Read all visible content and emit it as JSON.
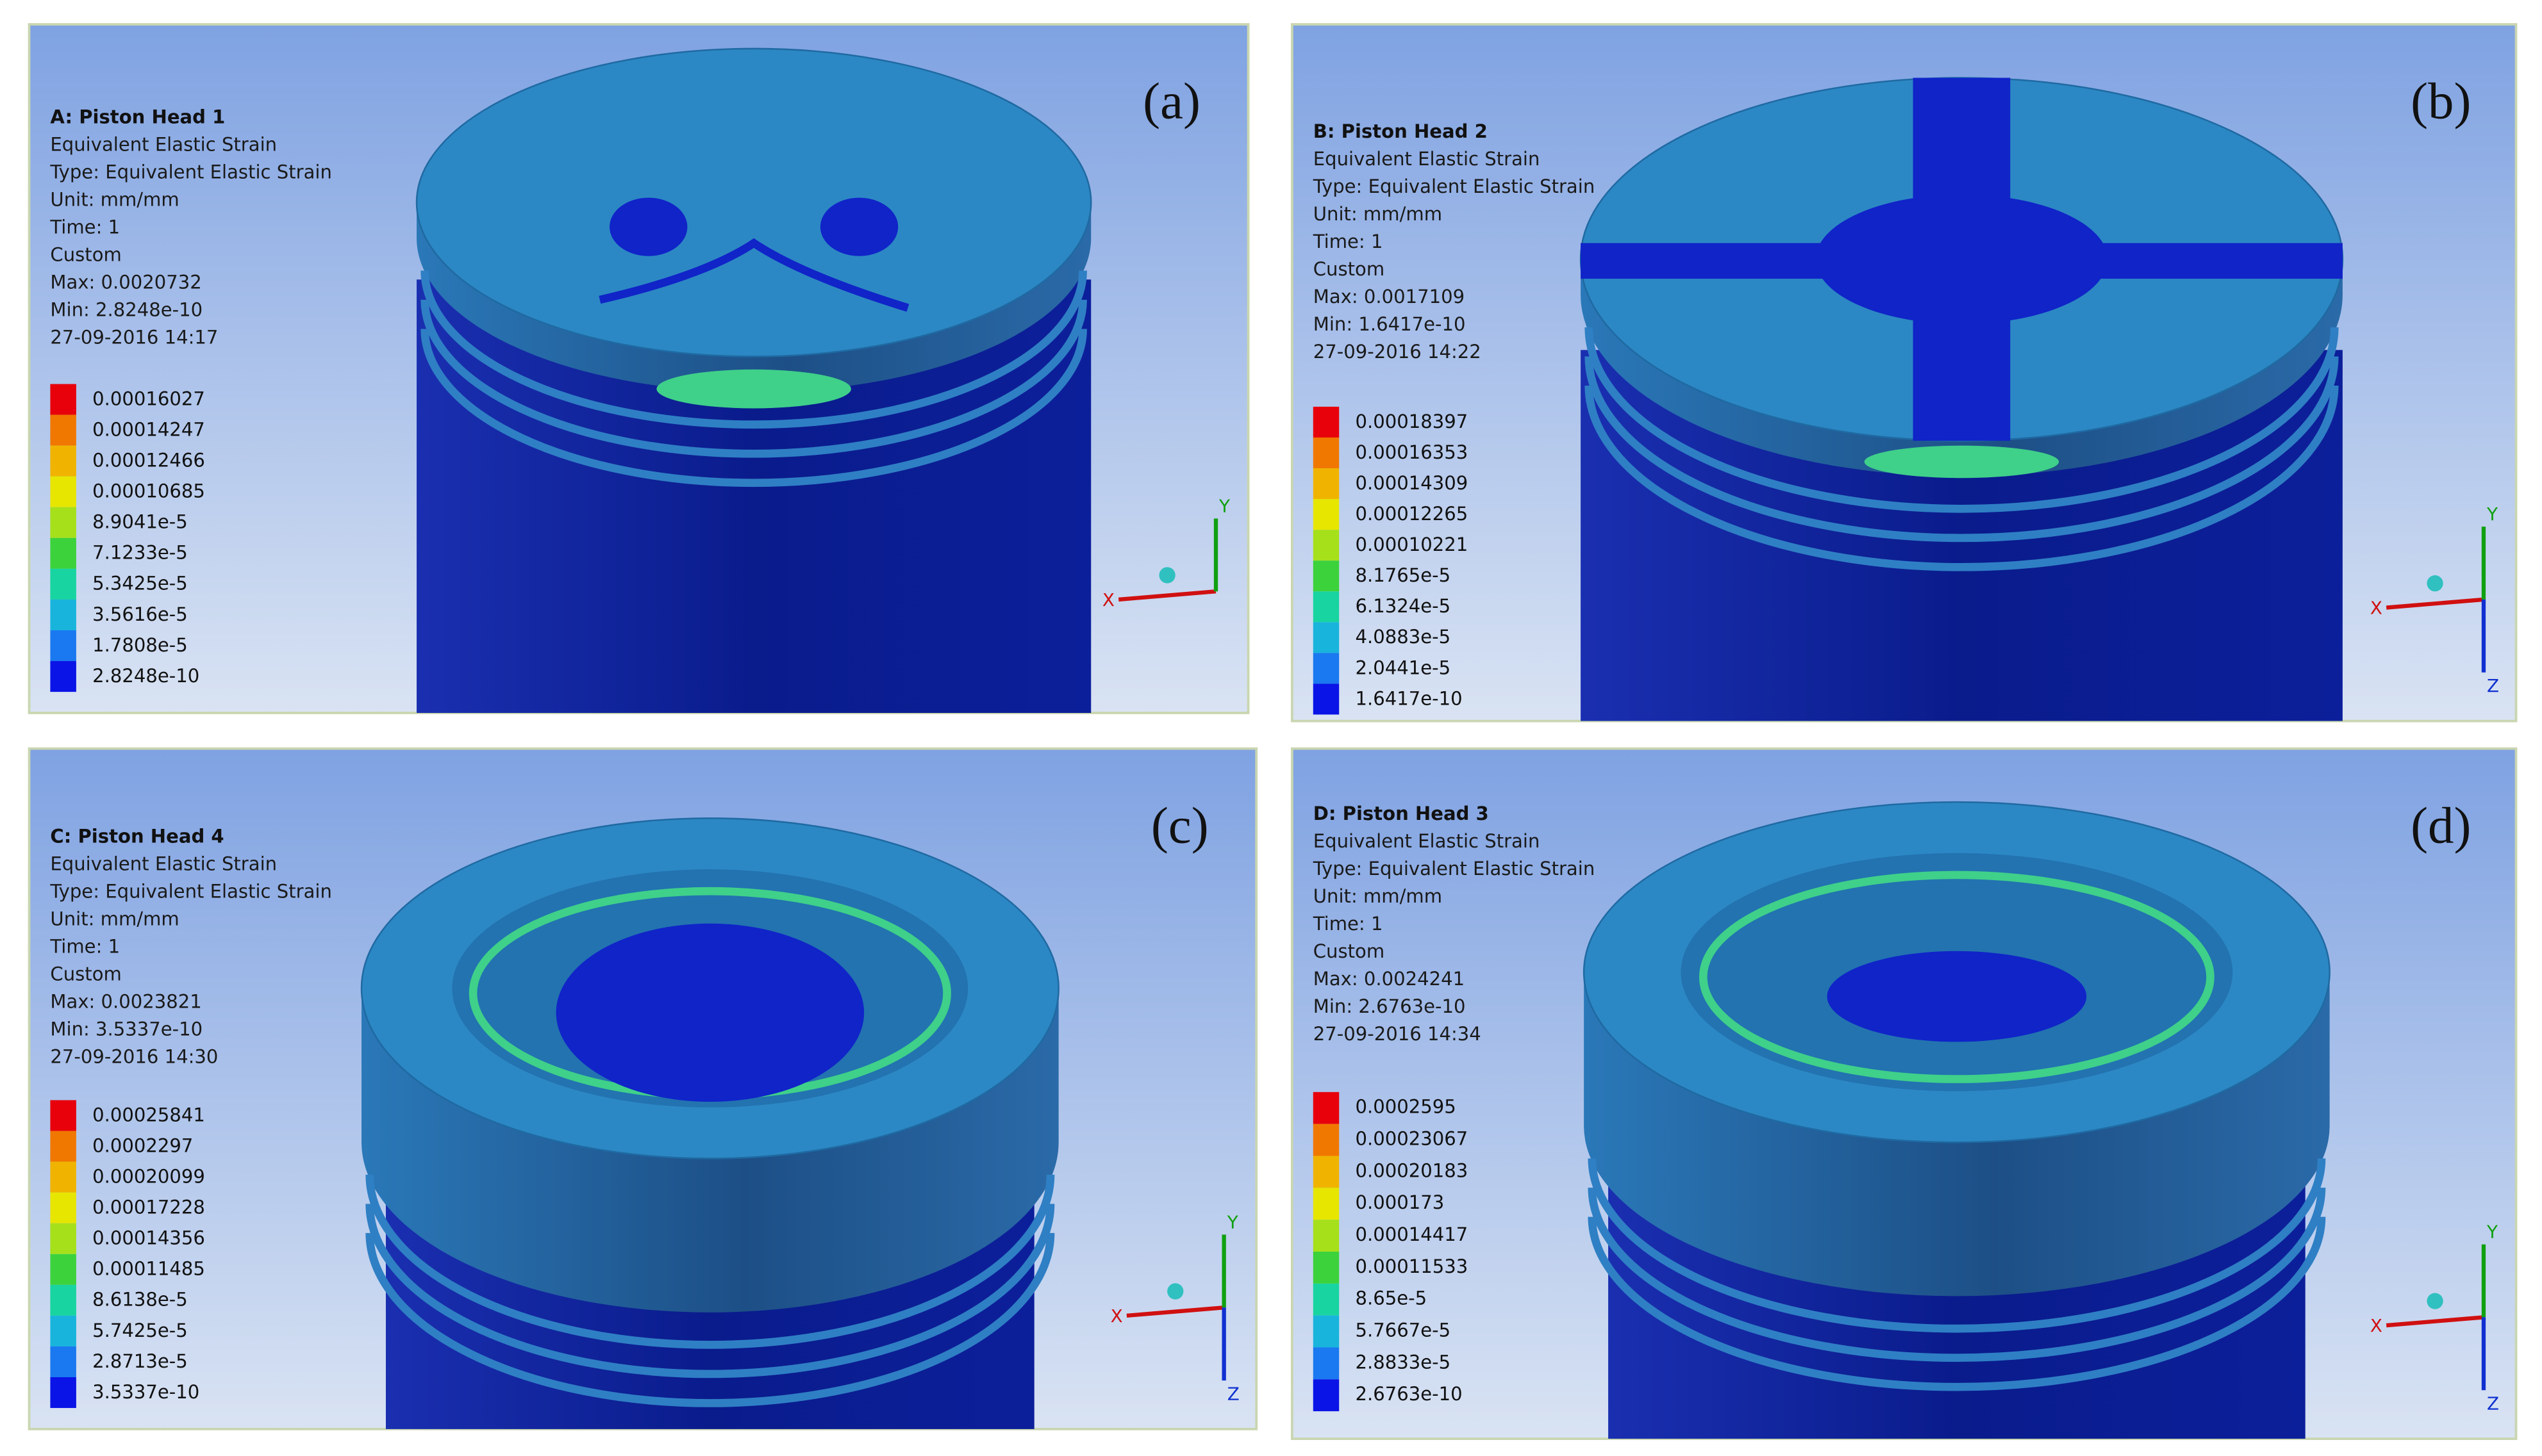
{
  "panels": [
    {
      "label": "(a)",
      "title": "A: Piston Head 1",
      "lines": [
        "Equivalent Elastic Strain",
        "Type: Equivalent Elastic Strain",
        "Unit: mm/mm",
        "Time: 1",
        "Custom",
        "Max: 0.0020732",
        "Min: 2.8248e-10",
        "27-09-2016 14:17"
      ],
      "legend": [
        "0.00016027",
        "0.00014247",
        "0.00012466",
        "0.00010685",
        "8.9041e-5",
        "7.1233e-5",
        "5.3425e-5",
        "3.5616e-5",
        "1.7808e-5",
        "2.8248e-10"
      ],
      "axes": [
        "X",
        "Y"
      ]
    },
    {
      "label": "(b)",
      "title": "B: Piston Head 2",
      "lines": [
        "Equivalent Elastic Strain",
        "Type: Equivalent Elastic Strain",
        "Unit: mm/mm",
        "Time: 1",
        "Custom",
        "Max: 0.0017109",
        "Min: 1.6417e-10",
        "27-09-2016 14:22"
      ],
      "legend": [
        "0.00018397",
        "0.00016353",
        "0.00014309",
        "0.00012265",
        "0.00010221",
        "8.1765e-5",
        "6.1324e-5",
        "4.0883e-5",
        "2.0441e-5",
        "1.6417e-10"
      ],
      "axes": [
        "X",
        "Y",
        "Z"
      ]
    },
    {
      "label": "(c)",
      "title": "C: Piston Head 4",
      "lines": [
        "Equivalent Elastic Strain",
        "Type: Equivalent Elastic Strain",
        "Unit: mm/mm",
        "Time: 1",
        "Custom",
        "Max: 0.0023821",
        "Min: 3.5337e-10",
        "27-09-2016 14:30"
      ],
      "legend": [
        "0.00025841",
        "0.0002297",
        "0.00020099",
        "0.00017228",
        "0.00014356",
        "0.00011485",
        "8.6138e-5",
        "5.7425e-5",
        "2.8713e-5",
        "3.5337e-10"
      ],
      "axes": [
        "X",
        "Y",
        "Z"
      ]
    },
    {
      "label": "(d)",
      "title": "D: Piston Head 3",
      "lines": [
        "Equivalent Elastic Strain",
        "Type: Equivalent Elastic Strain",
        "Unit: mm/mm",
        "Time: 1",
        "Custom",
        "Max: 0.0024241",
        "Min: 2.6763e-10",
        "27-09-2016 14:34"
      ],
      "legend": [
        "0.0002595",
        "0.00023067",
        "0.00020183",
        "0.000173",
        "0.00014417",
        "0.00011533",
        "8.65e-5",
        "5.7667e-5",
        "2.8833e-5",
        "2.6763e-10"
      ],
      "axes": [
        "X",
        "Y",
        "Z"
      ]
    }
  ]
}
